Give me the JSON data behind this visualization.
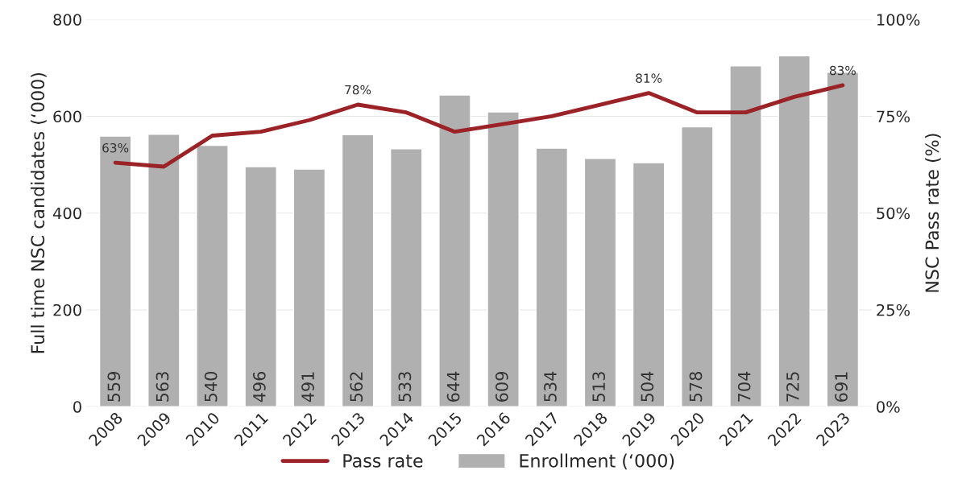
{
  "chart_data": {
    "type": "bar",
    "categories": [
      "2008",
      "2009",
      "2010",
      "2011",
      "2012",
      "2013",
      "2014",
      "2015",
      "2016",
      "2017",
      "2018",
      "2019",
      "2020",
      "2021",
      "2022",
      "2023"
    ],
    "series": [
      {
        "name": "Pass rate",
        "type": "line",
        "axis": "y2",
        "color": "#9b2226",
        "values": [
          63,
          62,
          70,
          71,
          74,
          78,
          76,
          71,
          73,
          75,
          78,
          81,
          76,
          76,
          80,
          83
        ],
        "value_labels": [
          "63%",
          null,
          null,
          null,
          null,
          "78%",
          null,
          null,
          null,
          null,
          null,
          "81%",
          null,
          null,
          null,
          "83%"
        ]
      },
      {
        "name": "Enrollment (‘000)",
        "color": "#b0b0b0",
        "values": [
          559,
          563,
          540,
          496,
          491,
          562,
          533,
          644,
          609,
          534,
          513,
          504,
          578,
          704,
          725,
          691
        ],
        "value_labels": [
          "559",
          "563",
          "540",
          "496",
          "491",
          "562",
          "533",
          "644",
          "609",
          "534",
          "513",
          "504",
          "578",
          "704",
          "725",
          "691"
        ]
      }
    ],
    "ylabel": "Full time NSC candidates (‘000)",
    "y2label": "NSC Pass rate (%)",
    "ylim": [
      0,
      800
    ],
    "yticks": [
      0,
      200,
      400,
      600,
      800
    ],
    "y2lim": [
      0,
      100
    ],
    "y2ticks": [
      {
        "value": 0,
        "label": "0%"
      },
      {
        "value": 25,
        "label": "25%"
      },
      {
        "value": 50,
        "label": "50%"
      },
      {
        "value": 75,
        "label": "75%"
      },
      {
        "value": 100,
        "label": "100%"
      }
    ],
    "grid": "y",
    "legend": "bottom",
    "line_style": "solid",
    "marker": "none"
  }
}
